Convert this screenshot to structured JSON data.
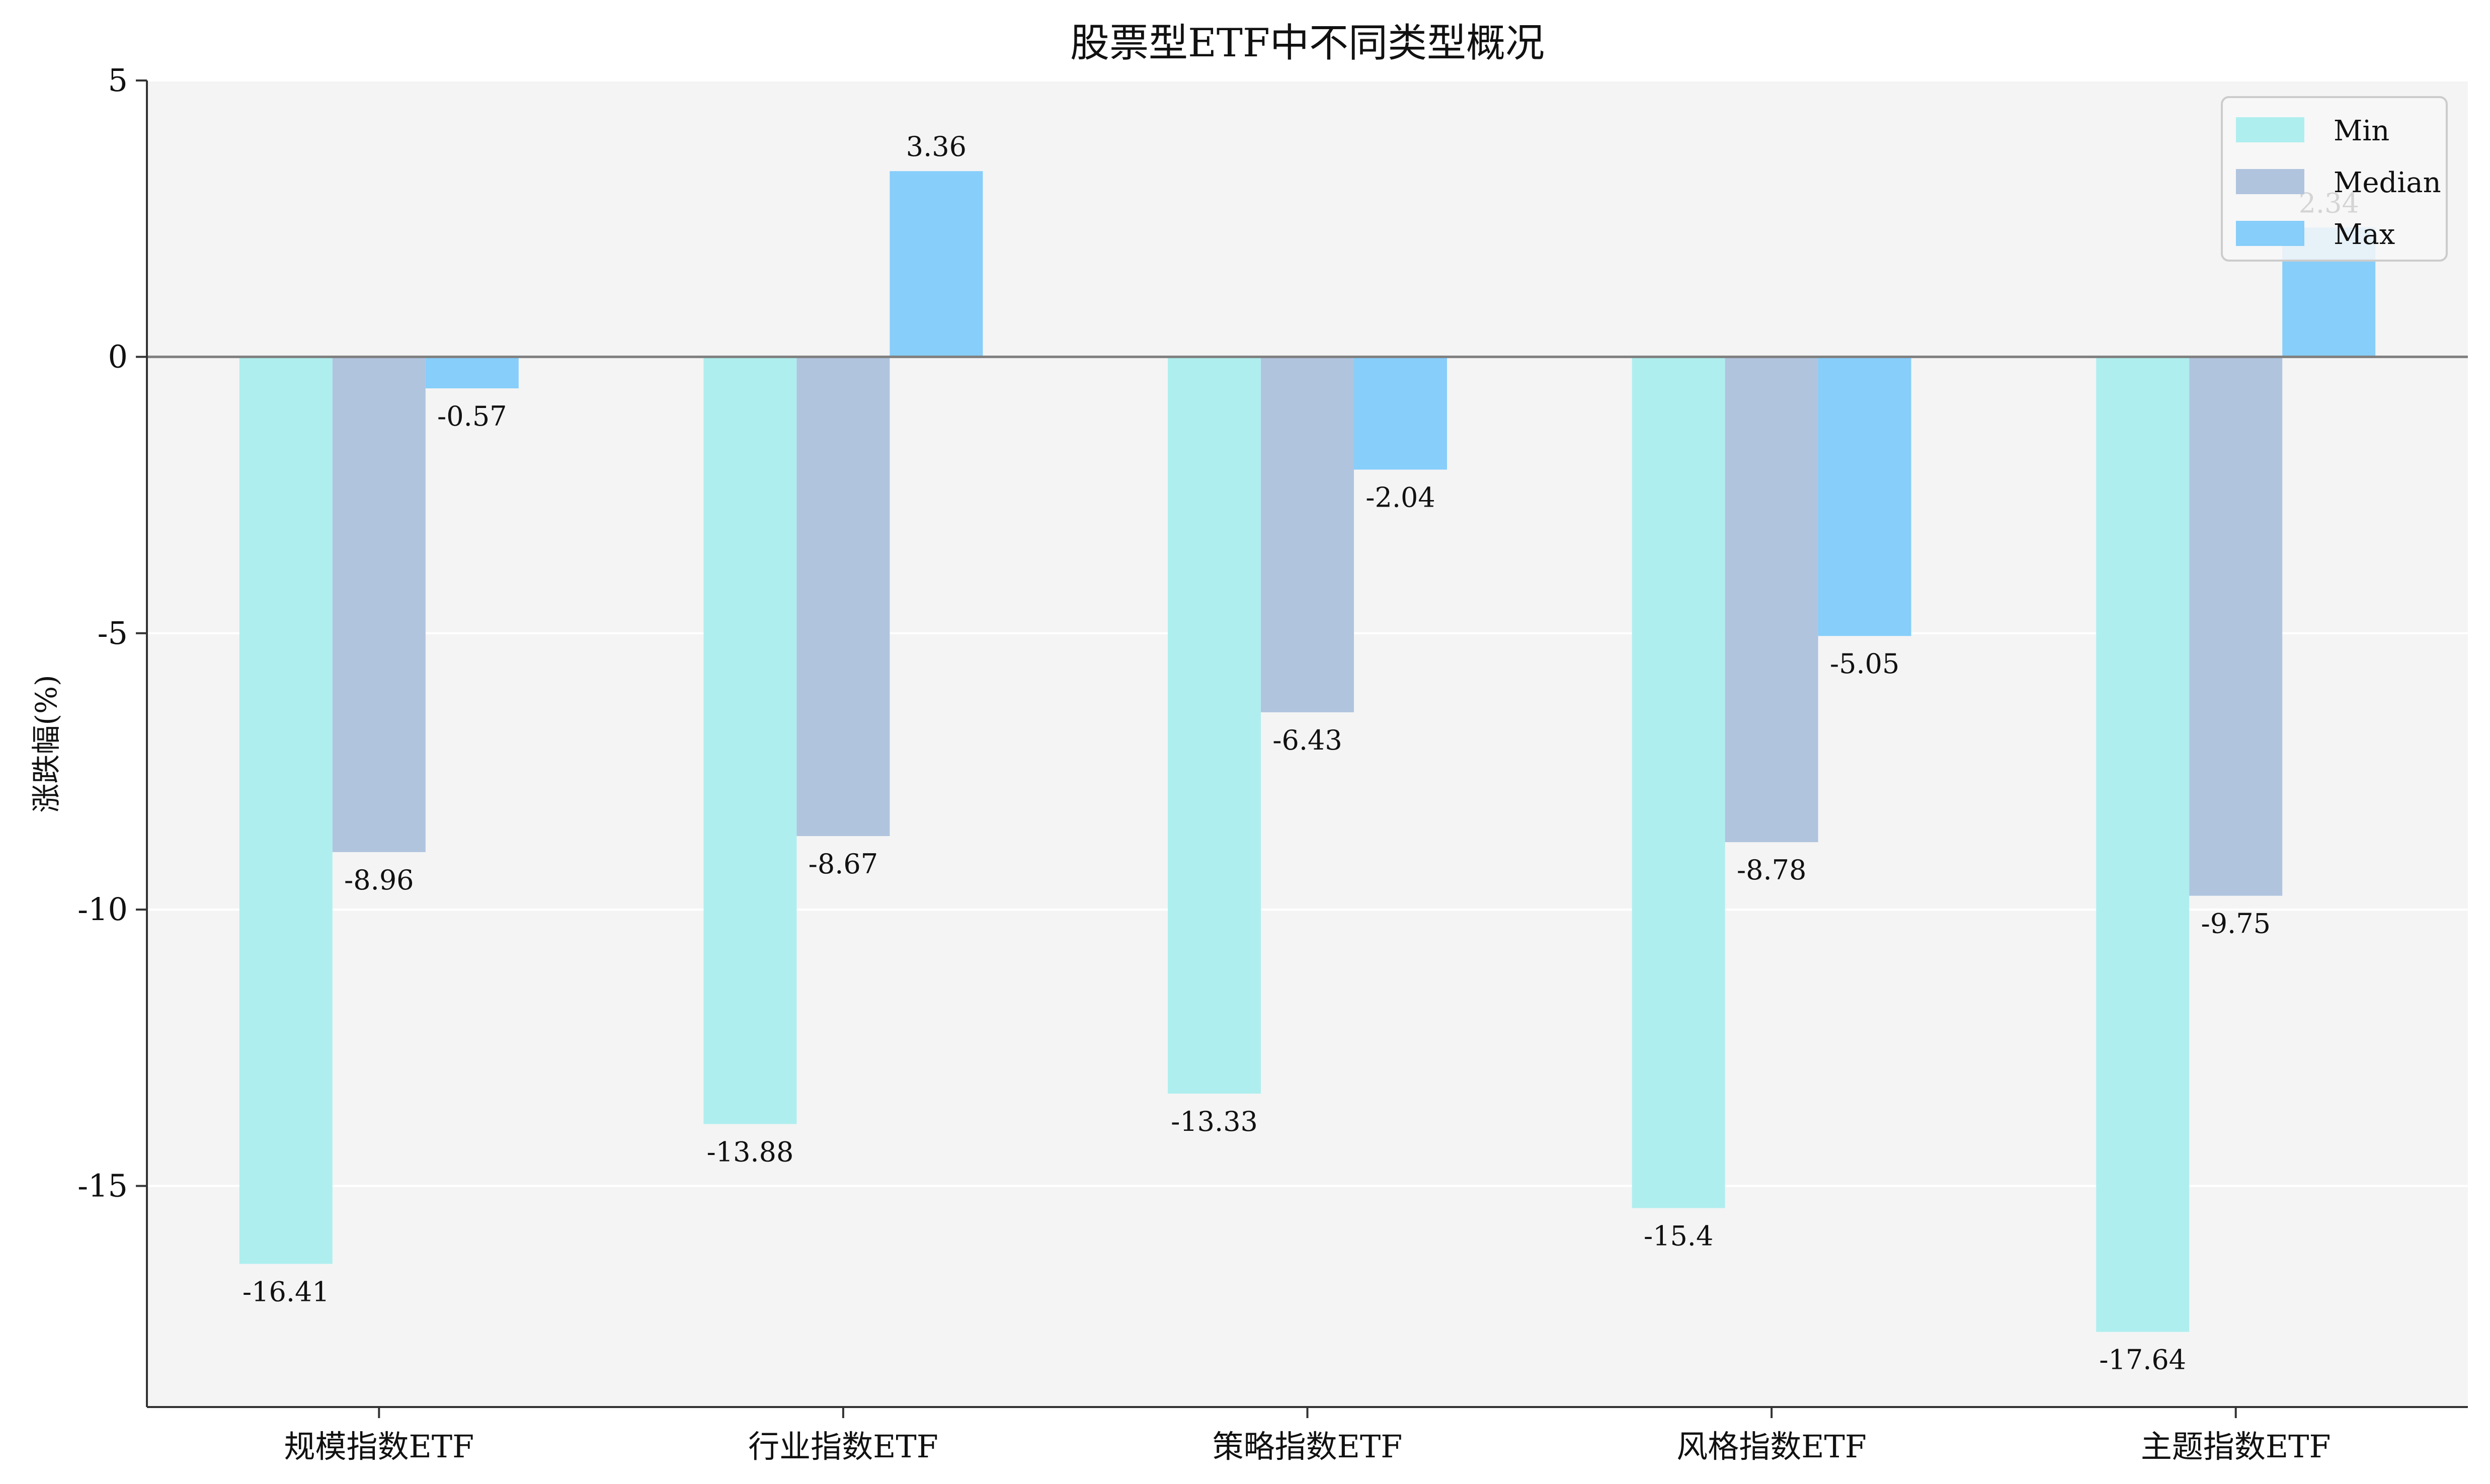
{
  "chart_data": {
    "type": "bar",
    "title": "股票型ETF中不同类型概况",
    "xlabel": "",
    "ylabel": "涨跌幅(%)",
    "categories": [
      "规模指数ETF",
      "行业指数ETF",
      "策略指数ETF",
      "风格指数ETF",
      "主题指数ETF"
    ],
    "series": [
      {
        "name": "Min",
        "color": "#afeeee",
        "values": [
          -16.41,
          -13.88,
          -13.33,
          -15.4,
          -17.64
        ],
        "labels": [
          "-16.41",
          "-13.88",
          "-13.33",
          "-15.4",
          "-17.64"
        ]
      },
      {
        "name": "Median",
        "color": "#b0c4de",
        "values": [
          -8.96,
          -8.67,
          -6.43,
          -8.78,
          -9.75
        ],
        "labels": [
          "-8.96",
          "-8.67",
          "-6.43",
          "-8.78",
          "-9.75"
        ]
      },
      {
        "name": "Max",
        "color": "#87cefa",
        "values": [
          -0.57,
          3.36,
          -2.04,
          -5.05,
          2.34
        ],
        "labels": [
          "-0.57",
          "3.36",
          "-2.04",
          "-5.05",
          "2.34"
        ]
      }
    ],
    "ylim": [
      -19,
      5
    ],
    "yticks": [
      5,
      0,
      -5,
      -10,
      -15
    ],
    "ytick_labels": [
      "5",
      "0",
      "-5",
      "-10",
      "-15"
    ],
    "grid": "horizontal",
    "legend": "top-right",
    "plot_background": "#f4f4f4",
    "zero_line_color": "#808080"
  }
}
